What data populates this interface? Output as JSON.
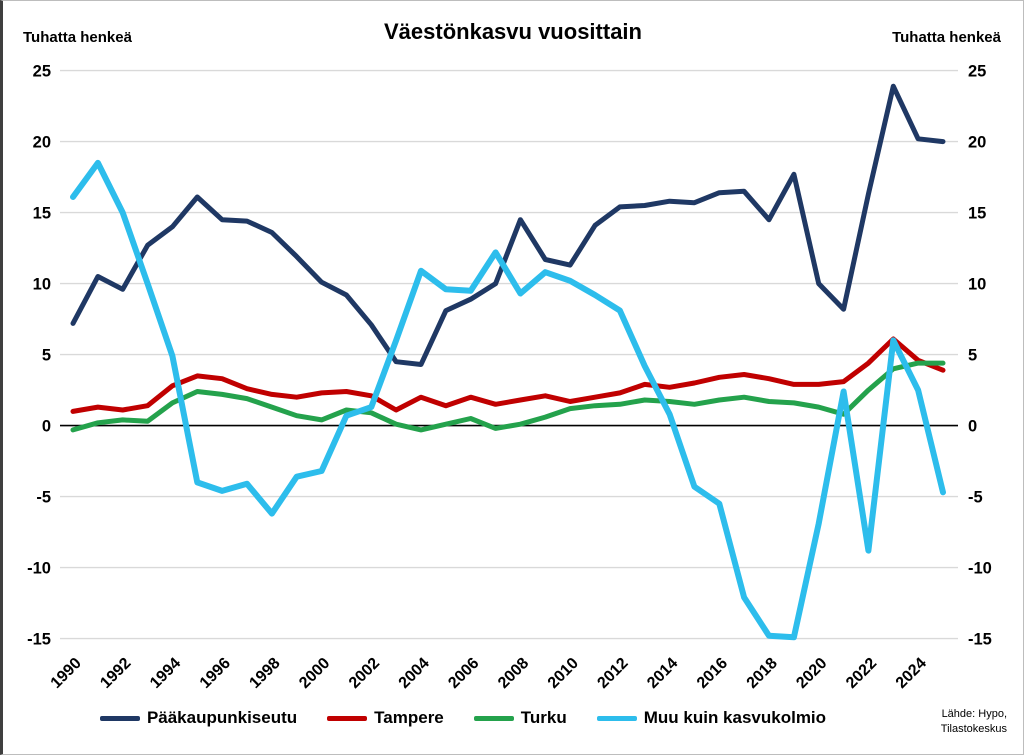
{
  "chart": {
    "title": "Väestönkasvu vuosittain",
    "unit_label_left": "Tuhatta henkeä",
    "unit_label_right": "Tuhatta henkeä",
    "source_line1": "Lähde: Hypo,",
    "source_line2": "Tilastokeskus",
    "background_color": "#ffffff",
    "gridline_color": "#d9d9d9",
    "zero_line_color": "#000000"
  },
  "chart_data": {
    "type": "line",
    "title": "Väestönkasvu vuosittain",
    "xlabel": "",
    "ylabel": "Tuhatta henkeä",
    "ylim": [
      -15,
      25
    ],
    "yticks": [
      -15,
      -10,
      -5,
      0,
      5,
      10,
      15,
      20,
      25
    ],
    "grid": "horizontal",
    "legend_position": "bottom",
    "x": [
      1990,
      1991,
      1992,
      1993,
      1994,
      1995,
      1996,
      1997,
      1998,
      1999,
      2000,
      2001,
      2002,
      2003,
      2004,
      2005,
      2006,
      2007,
      2008,
      2009,
      2010,
      2011,
      2012,
      2013,
      2014,
      2015,
      2016,
      2017,
      2018,
      2019,
      2020,
      2021,
      2022,
      2023,
      2024,
      2025
    ],
    "xtick_labels": [
      "1990",
      "1992",
      "1994",
      "1996",
      "1998",
      "2000",
      "2002",
      "2004",
      "2006",
      "2008",
      "2010",
      "2012",
      "2014",
      "2016",
      "2018",
      "2020",
      "2022",
      "2024"
    ],
    "series": [
      {
        "name": "Pääkaupunkiseutu",
        "color": "#1f3864",
        "line_width": 5,
        "values": [
          7.2,
          10.5,
          9.6,
          12.7,
          14.0,
          16.1,
          14.5,
          14.4,
          13.6,
          11.9,
          10.1,
          9.2,
          7.1,
          4.5,
          4.3,
          8.1,
          8.9,
          10.0,
          14.5,
          11.7,
          11.3,
          14.1,
          15.4,
          15.5,
          15.8,
          15.7,
          16.4,
          16.5,
          14.5,
          17.7,
          10.0,
          8.2,
          16.3,
          23.9,
          20.2,
          20.0
        ]
      },
      {
        "name": "Tampere",
        "color": "#c00000",
        "line_width": 5,
        "values": [
          1.0,
          1.3,
          1.1,
          1.4,
          2.8,
          3.5,
          3.3,
          2.6,
          2.2,
          2.0,
          2.3,
          2.4,
          2.1,
          1.1,
          2.0,
          1.4,
          2.0,
          1.5,
          1.8,
          2.1,
          1.7,
          2.0,
          2.3,
          2.9,
          2.7,
          3.0,
          3.4,
          3.6,
          3.3,
          2.9,
          2.9,
          3.1,
          4.4,
          6.1,
          4.6,
          3.9
        ]
      },
      {
        "name": "Turku",
        "color": "#24a24c",
        "line_width": 5,
        "values": [
          -0.3,
          0.2,
          0.4,
          0.3,
          1.6,
          2.4,
          2.2,
          1.9,
          1.3,
          0.7,
          0.4,
          1.1,
          0.9,
          0.1,
          -0.3,
          0.1,
          0.5,
          -0.2,
          0.1,
          0.6,
          1.2,
          1.4,
          1.5,
          1.8,
          1.7,
          1.5,
          1.8,
          2.0,
          1.7,
          1.6,
          1.3,
          0.8,
          2.5,
          4.0,
          4.4,
          4.4
        ]
      },
      {
        "name": "Muu kuin kasvukolmio",
        "color": "#2dbdec",
        "line_width": 6,
        "values": [
          16.1,
          18.5,
          15.0,
          10.0,
          4.9,
          -4.0,
          -4.6,
          -4.1,
          -6.2,
          -3.6,
          -3.2,
          0.7,
          1.3,
          6.0,
          10.9,
          9.6,
          9.5,
          12.2,
          9.3,
          10.8,
          10.2,
          9.2,
          8.1,
          4.2,
          0.8,
          -4.3,
          -5.5,
          -12.1,
          -14.8,
          -14.9,
          -6.9,
          2.4,
          -8.8,
          6.0,
          2.5,
          -4.7
        ]
      }
    ]
  }
}
